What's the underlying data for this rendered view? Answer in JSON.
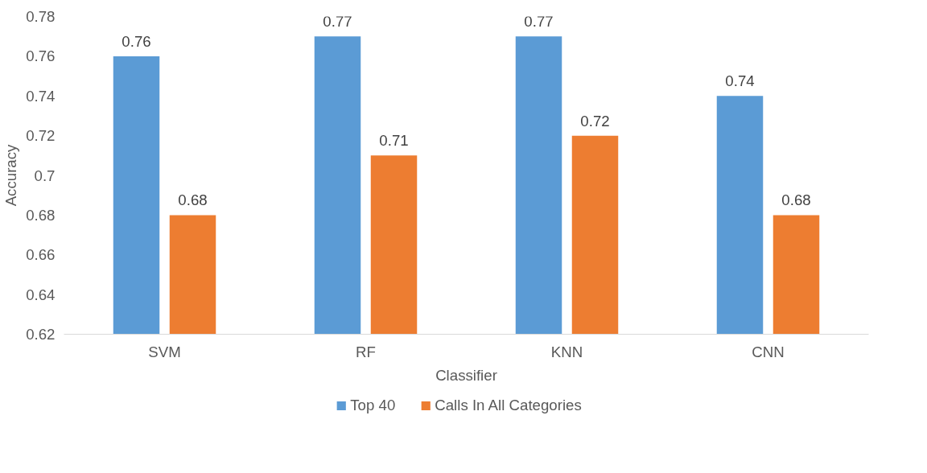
{
  "chart_data": {
    "type": "bar",
    "xlabel": "Classifier",
    "ylabel": "Accuracy",
    "categories": [
      "SVM",
      "RF",
      "KNN",
      "CNN"
    ],
    "series": [
      {
        "name": "Top 40",
        "color": "#5b9bd5",
        "values": [
          0.76,
          0.77,
          0.77,
          0.74
        ]
      },
      {
        "name": "Calls In All Categories",
        "color": "#ed7d31",
        "values": [
          0.68,
          0.71,
          0.72,
          0.68
        ]
      }
    ],
    "ylim": [
      0.62,
      0.78
    ],
    "yticks": [
      0.62,
      0.64,
      0.66,
      0.68,
      0.7,
      0.72,
      0.74,
      0.76,
      0.78
    ],
    "grid": false,
    "legend": "bottom",
    "data_labels": true
  }
}
